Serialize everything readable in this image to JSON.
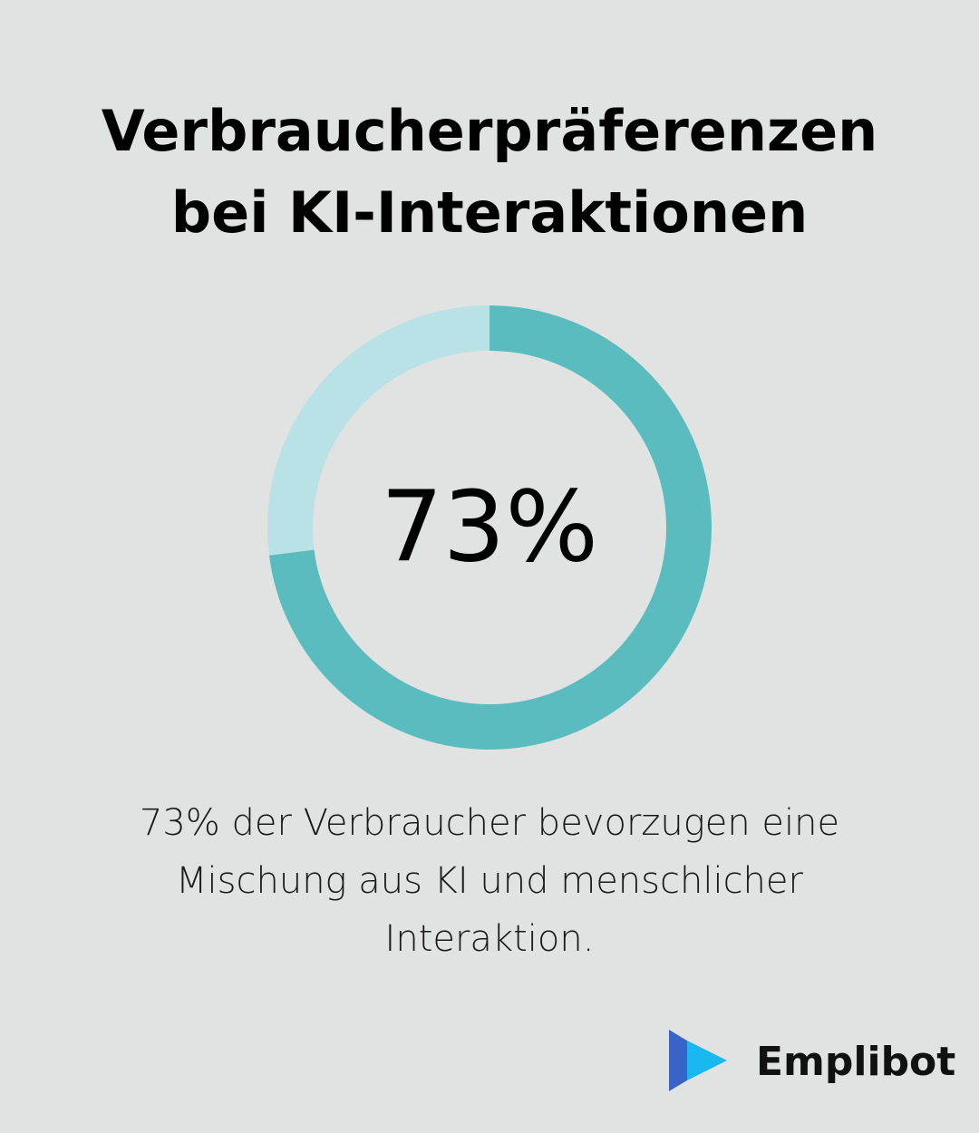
{
  "title_line1": "Verbraucherpräferenzen",
  "title_line2": "bei KI-Interaktionen",
  "chart_data": {
    "type": "pie",
    "categories": [
      "",
      ""
    ],
    "values": [
      73,
      27
    ],
    "center_label": "73%",
    "colors": [
      "#5bbcc0",
      "#b8e2e5"
    ]
  },
  "caption_line1": "73% der Verbraucher bevorzugen eine",
  "caption_line2": "Mischung aus KI und menschlicher",
  "caption_line3": "Interaktion.",
  "logo": {
    "name": "Emplibot",
    "icon": "play-arrows-icon",
    "colors": [
      "#3a63c9",
      "#19b8f0"
    ]
  }
}
